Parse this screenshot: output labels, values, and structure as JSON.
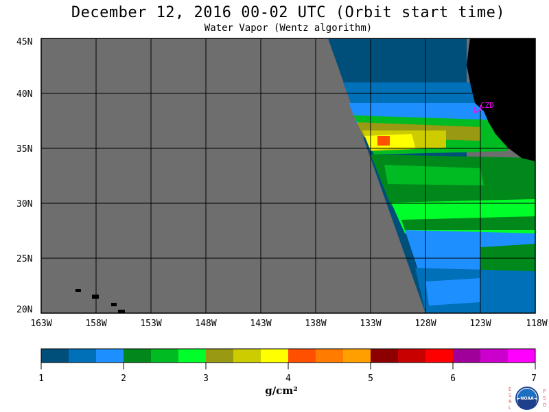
{
  "header": {
    "title": "December 12, 2016  00-02 UTC  (Orbit start time)",
    "subtitle": "Water Vapor (Wentz algorithm)"
  },
  "map": {
    "lat_labels": [
      "45N",
      "40N",
      "35N",
      "30N",
      "25N",
      "20N"
    ],
    "lon_labels": [
      "163W",
      "158W",
      "153W",
      "148W",
      "143W",
      "138W",
      "133W",
      "128W",
      "123W",
      "118W"
    ],
    "station_label": "CZD",
    "colors": {
      "no_data": "#6e6e6e",
      "land": "#000000",
      "station": "#ff00ff"
    }
  },
  "colorbar": {
    "tick_labels": [
      "1",
      "2",
      "3",
      "4",
      "5",
      "6",
      "7"
    ],
    "unit_label": "g/cm²",
    "colors": [
      "#004f7a",
      "#0070b8",
      "#1e8fff",
      "#00881a",
      "#00bb22",
      "#00ff2a",
      "#9a9a12",
      "#cccc00",
      "#ffff00",
      "#ff5000",
      "#ff7c00",
      "#ffa000",
      "#8c0000",
      "#c80000",
      "#ff0000",
      "#a0009a",
      "#cc00cc",
      "#ff00ff"
    ]
  },
  "logo": {
    "left_letters": "ESRL",
    "right_letters": "PSD",
    "center_text": "NOAA"
  }
}
